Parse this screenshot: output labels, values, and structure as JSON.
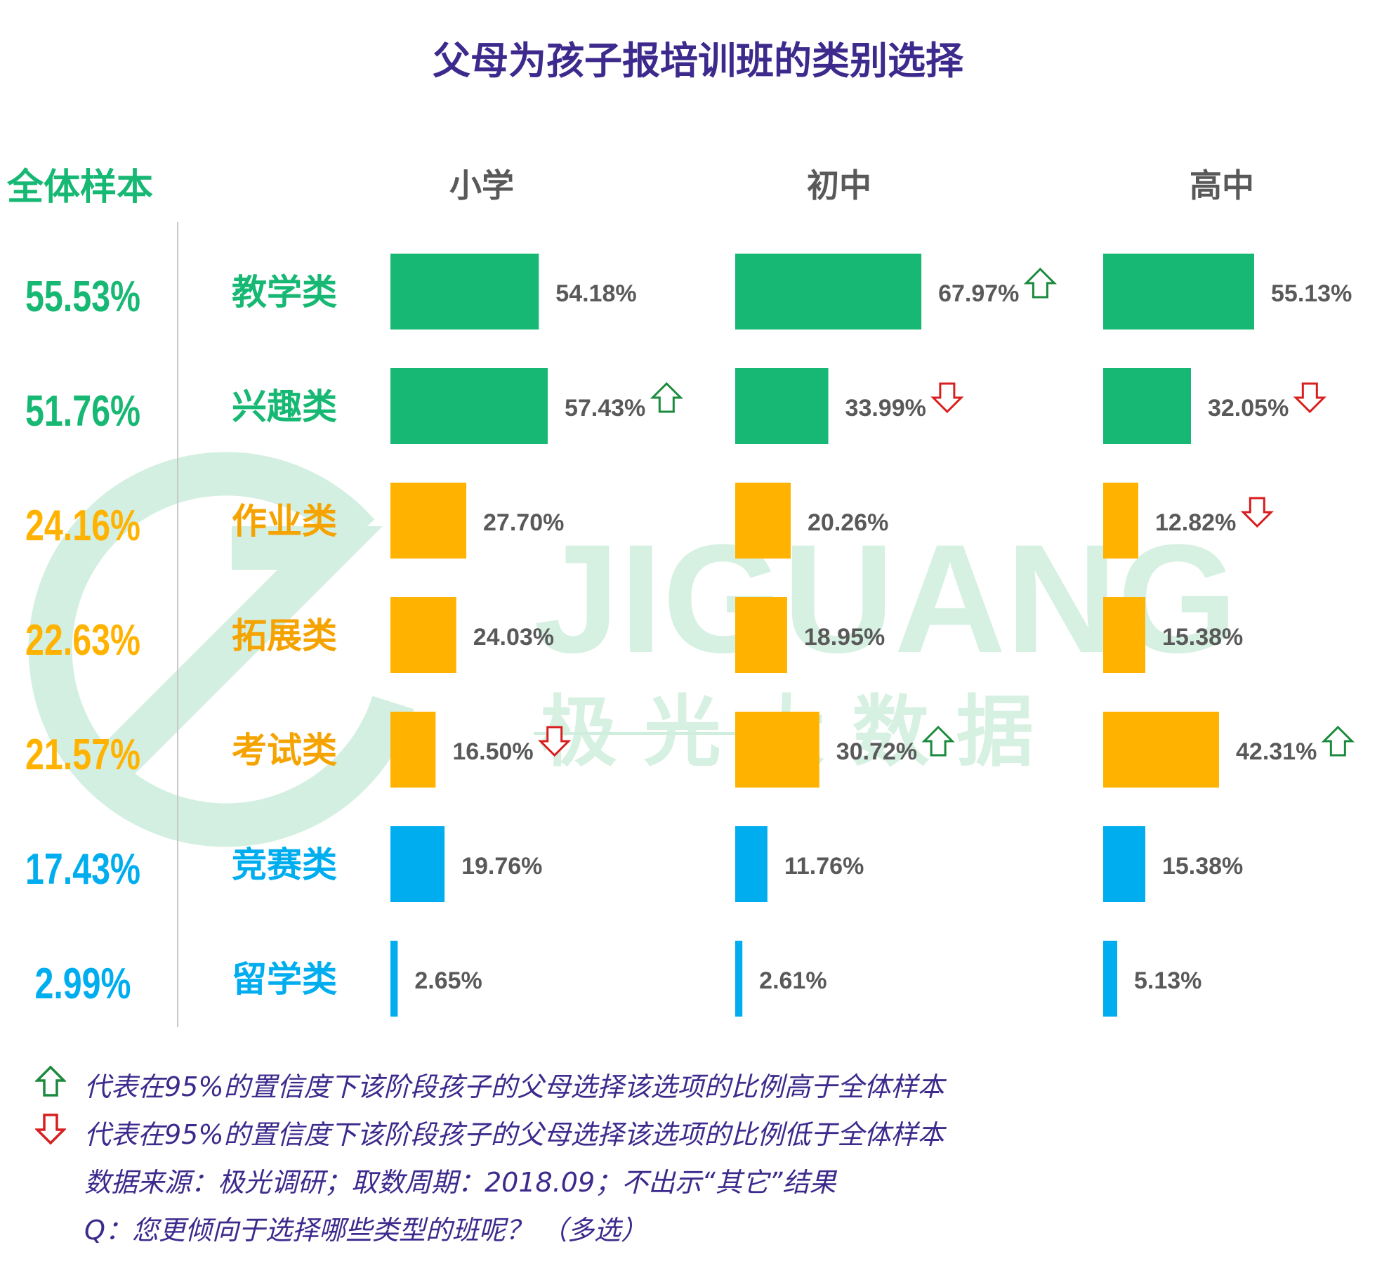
{
  "title": "父母为孩子报培训班的类别选择",
  "watermark": {
    "brand": "JIGUANG",
    "cn": "极 光 大 数 据"
  },
  "colors": {
    "green": "#16b873",
    "orange": "#ffb300",
    "blue": "#00adef",
    "gold_label": "#f5a300",
    "value_label": "#595959",
    "up": "#1a8a3c",
    "down": "#d81e1e",
    "title": "#3d2a8c"
  },
  "legend": {
    "up": "代表在95%的置信度下该阶段孩子的父母选择该选项的比例高于全体样本",
    "down": "代表在95%的置信度下该阶段孩子的父母选择该选项的比例低于全体样本"
  },
  "source_note": "数据来源：极光调研；取数周期：2018.09；不出示“其它”结果",
  "question_note": "Q：您更倾向于选择哪些类型的班呢？ （多选）",
  "chart_data": {
    "type": "bar",
    "orientation": "horizontal",
    "title": "父母为孩子报培训班的类别选择",
    "total_label": "全体样本",
    "categories": [
      "教学类",
      "兴趣类",
      "作业类",
      "拓展类",
      "考试类",
      "竞赛类",
      "留学类"
    ],
    "category_colors": [
      "green",
      "green",
      "orange",
      "orange",
      "orange",
      "blue",
      "blue"
    ],
    "total_values": [
      55.53,
      51.76,
      24.16,
      22.63,
      21.57,
      17.43,
      2.99
    ],
    "total_labels": [
      "55.53%",
      "51.76%",
      "24.16%",
      "22.63%",
      "21.57%",
      "17.43%",
      "2.99%"
    ],
    "unit": "%",
    "series": [
      {
        "name": "小学",
        "values": [
          54.18,
          57.43,
          27.7,
          24.03,
          16.5,
          19.76,
          2.65
        ],
        "labels": [
          "54.18%",
          "57.43%",
          "27.70%",
          "24.03%",
          "16.50%",
          "19.76%",
          "2.65%"
        ],
        "significance": [
          "",
          "up",
          "",
          "",
          "down",
          "",
          ""
        ]
      },
      {
        "name": "初中",
        "values": [
          67.97,
          33.99,
          20.26,
          18.95,
          30.72,
          11.76,
          2.61
        ],
        "labels": [
          "67.97%",
          "33.99%",
          "20.26%",
          "18.95%",
          "30.72%",
          "11.76%",
          "2.61%"
        ],
        "significance": [
          "up",
          "down",
          "",
          "",
          "up",
          "",
          ""
        ]
      },
      {
        "name": "高中",
        "values": [
          55.13,
          32.05,
          12.82,
          15.38,
          42.31,
          15.38,
          5.13
        ],
        "labels": [
          "55.13%",
          "32.05%",
          "12.82%",
          "15.38%",
          "42.31%",
          "15.38%",
          "5.13%"
        ],
        "significance": [
          "",
          "down",
          "down",
          "",
          "up",
          "",
          ""
        ]
      }
    ]
  }
}
